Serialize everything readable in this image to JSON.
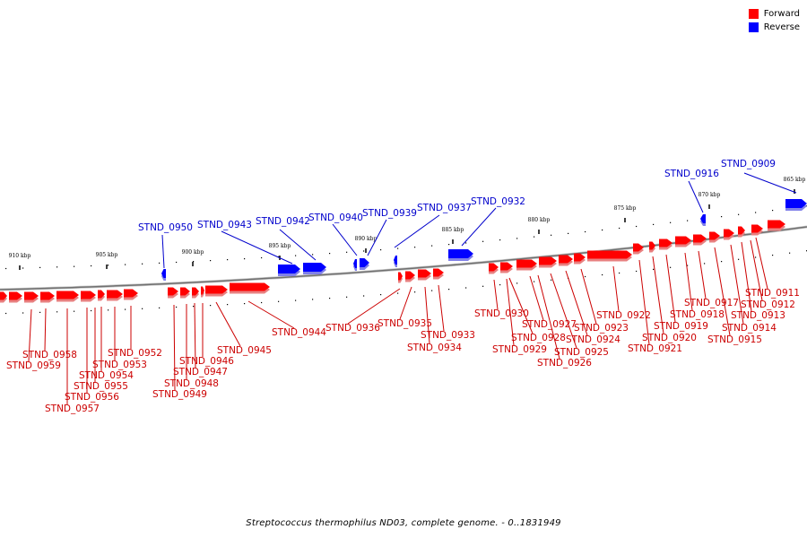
{
  "caption": "Streptococcus thermophilus ND03, complete genome. - 0..1831949",
  "legend": [
    {
      "label": "Forward",
      "color": "#ff0000"
    },
    {
      "label": "Reverse",
      "color": "#0000ff"
    }
  ],
  "colors": {
    "forward": "#ff0000",
    "reverse": "#0000ff",
    "forward_label": "#cc0000",
    "reverse_label": "#0000cc",
    "backbone": "#808080"
  },
  "scale_ticks": [
    {
      "label": "865 kbp",
      "kbp": 865
    },
    {
      "label": "870 kbp",
      "kbp": 870
    },
    {
      "label": "875 kbp",
      "kbp": 875
    },
    {
      "label": "880 kbp",
      "kbp": 880
    },
    {
      "label": "885 kbp",
      "kbp": 885
    },
    {
      "label": "890 kbp",
      "kbp": 890
    },
    {
      "label": "895 kbp",
      "kbp": 895
    },
    {
      "label": "900 kbp",
      "kbp": 900
    },
    {
      "label": "905 kbp",
      "kbp": 905
    },
    {
      "label": "910 kbp",
      "kbp": 910
    }
  ],
  "reverse_genes": [
    "STND_0909",
    "STND_0916",
    "STND_0932",
    "STND_0937",
    "STND_0939",
    "STND_0940",
    "STND_0942",
    "STND_0943",
    "STND_0950"
  ],
  "forward_genes": [
    "STND_0911",
    "STND_0912",
    "STND_0913",
    "STND_0914",
    "STND_0915",
    "STND_0917",
    "STND_0918",
    "STND_0919",
    "STND_0920",
    "STND_0921",
    "STND_0922",
    "STND_0923",
    "STND_0924",
    "STND_0925",
    "STND_0926",
    "STND_0927",
    "STND_0928",
    "STND_0929",
    "STND_0930",
    "STND_0933",
    "STND_0934",
    "STND_0935",
    "STND_0936",
    "STND_0944",
    "STND_0945",
    "STND_0946",
    "STND_0947",
    "STND_0948",
    "STND_0949",
    "STND_0952",
    "STND_0953",
    "STND_0954",
    "STND_0955",
    "STND_0956",
    "STND_0957",
    "STND_0958",
    "STND_0959"
  ]
}
